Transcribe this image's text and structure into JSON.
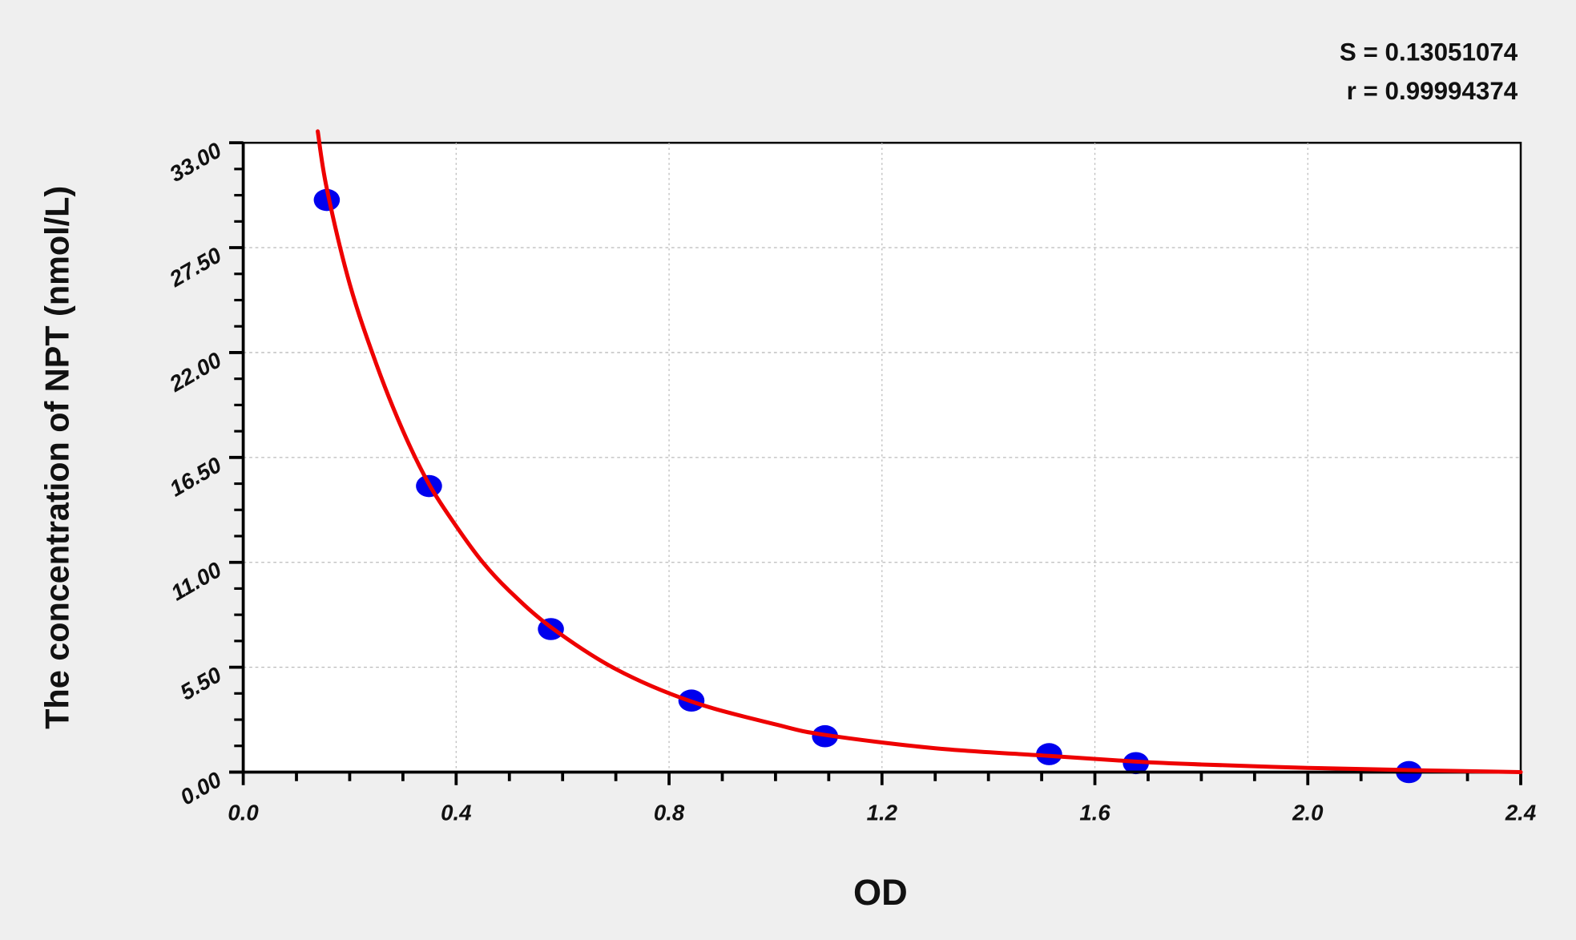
{
  "stats": {
    "s_label": "S = 0.13051074",
    "r_label": "r = 0.99994374"
  },
  "chart_data": {
    "type": "scatter",
    "title": "",
    "xlabel": "OD",
    "ylabel": "The concentration of NPT (nmol/L)",
    "xlim": [
      0.0,
      2.4
    ],
    "ylim": [
      0.0,
      33.0
    ],
    "x_ticks": [
      "0.0",
      "0.4",
      "0.8",
      "1.2",
      "1.6",
      "2.0",
      "2.4"
    ],
    "y_ticks": [
      "0.00",
      "5.50",
      "11.00",
      "16.50",
      "22.00",
      "27.50",
      "33.00"
    ],
    "grid": true,
    "legend": "none",
    "colors": {
      "points": "#0000ee",
      "curve": "#ee0000",
      "grid": "#bbbbbb"
    },
    "series": [
      {
        "type": "scatter",
        "x": [
          0.157,
          0.349,
          0.578,
          0.842,
          1.093,
          1.514,
          1.677,
          2.19
        ],
        "y": [
          30.0,
          15.0,
          7.5,
          3.75,
          1.88,
          0.94,
          0.47,
          0.0
        ]
      },
      {
        "type": "line",
        "x": [
          0.14,
          0.157,
          0.2,
          0.25,
          0.3,
          0.349,
          0.4,
          0.45,
          0.5,
          0.578,
          0.7,
          0.842,
          1.0,
          1.093,
          1.3,
          1.514,
          1.677,
          1.8,
          2.0,
          2.2,
          2.4
        ],
        "y": [
          33.6,
          30.6,
          25.6,
          21.4,
          17.9,
          15.1,
          12.9,
          11.0,
          9.5,
          7.6,
          5.4,
          3.7,
          2.5,
          1.95,
          1.25,
          0.85,
          0.55,
          0.4,
          0.22,
          0.1,
          0.0
        ]
      }
    ]
  }
}
